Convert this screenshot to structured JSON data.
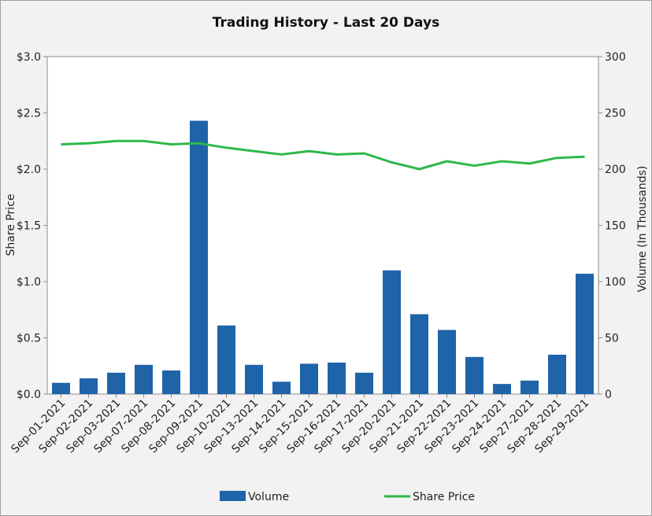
{
  "chart_data": {
    "type": "bar",
    "title": "Trading History - Last 20 Days",
    "ylabel_left": "Share Price",
    "ylabel_right": "Volume (In Thousands)",
    "categories": [
      "Sep-01-2021",
      "Sep-02-2021",
      "Sep-03-2021",
      "Sep-07-2021",
      "Sep-08-2021",
      "Sep-09-2021",
      "Sep-10-2021",
      "Sep-13-2021",
      "Sep-14-2021",
      "Sep-15-2021",
      "Sep-16-2021",
      "Sep-17-2021",
      "Sep-20-2021",
      "Sep-21-2021",
      "Sep-22-2021",
      "Sep-23-2021",
      "Sep-24-2021",
      "Sep-27-2021",
      "Sep-28-2021",
      "Sep-29-2021"
    ],
    "left_axis": {
      "ylim": [
        0,
        3.0
      ],
      "ticks": [
        "$0.0",
        "$0.5",
        "$1.0",
        "$1.5",
        "$2.0",
        "$2.5",
        "$3.0"
      ],
      "tick_values": [
        0,
        0.5,
        1.0,
        1.5,
        2.0,
        2.5,
        3.0
      ]
    },
    "right_axis": {
      "ylim": [
        0,
        300
      ],
      "ticks": [
        "0",
        "50",
        "100",
        "150",
        "200",
        "250",
        "300"
      ],
      "tick_values": [
        0,
        50,
        100,
        150,
        200,
        250,
        300
      ]
    },
    "series": [
      {
        "name": "Volume",
        "type": "bar",
        "axis": "right",
        "color": "#1f63a8",
        "values": [
          10,
          14,
          19,
          26,
          21,
          243,
          61,
          26,
          11,
          27,
          28,
          19,
          110,
          71,
          57,
          33,
          9,
          12,
          35,
          107
        ]
      },
      {
        "name": "Share Price",
        "type": "line",
        "axis": "left",
        "color": "#2eb84b",
        "values": [
          2.22,
          2.23,
          2.25,
          2.25,
          2.22,
          2.23,
          2.19,
          2.16,
          2.13,
          2.16,
          2.13,
          2.14,
          2.06,
          2.0,
          2.07,
          2.03,
          2.07,
          2.05,
          2.1,
          2.11
        ]
      }
    ],
    "legend_position": "bottom",
    "grid": false
  }
}
